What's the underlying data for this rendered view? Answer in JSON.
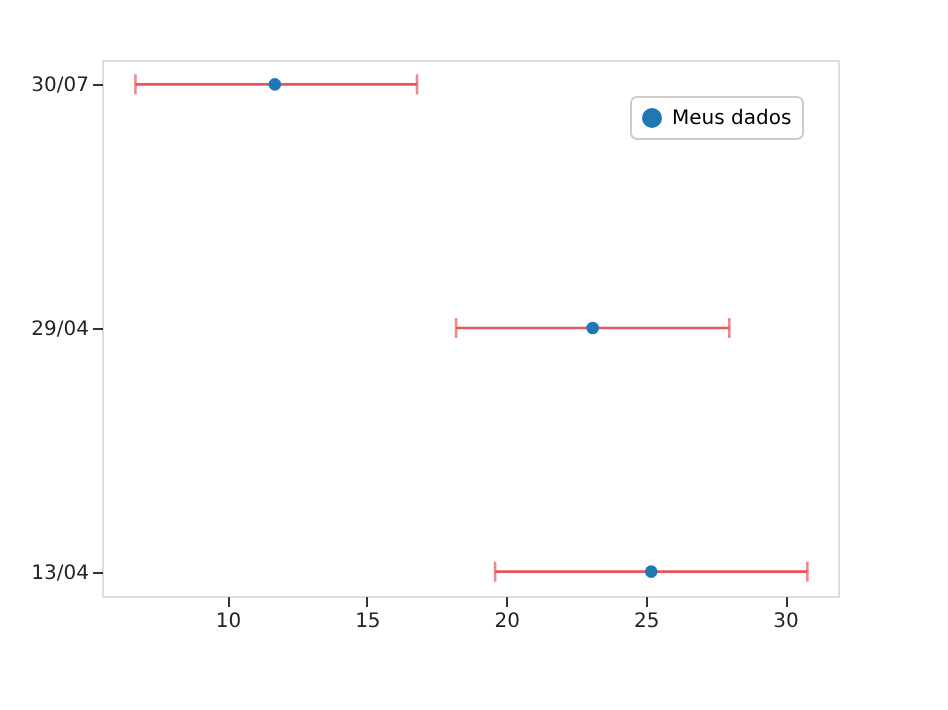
{
  "chart_data": {
    "type": "scatter",
    "orientation": "horizontal",
    "categories": [
      "30/07",
      "29/04",
      "13/04"
    ],
    "series": [
      {
        "name": "Meus dados",
        "color": "#1f77b4",
        "values": [
          11.7,
          23.1,
          25.2
        ],
        "errors": [
          [
            6.7,
            16.8
          ],
          [
            18.2,
            28.0
          ],
          [
            19.6,
            30.8
          ]
        ]
      }
    ],
    "xlim": [
      5.5,
      31.9
    ],
    "xticks": [
      10,
      15,
      20,
      25,
      30
    ],
    "legend": "top right",
    "marker": "circle",
    "grid": false
  }
}
